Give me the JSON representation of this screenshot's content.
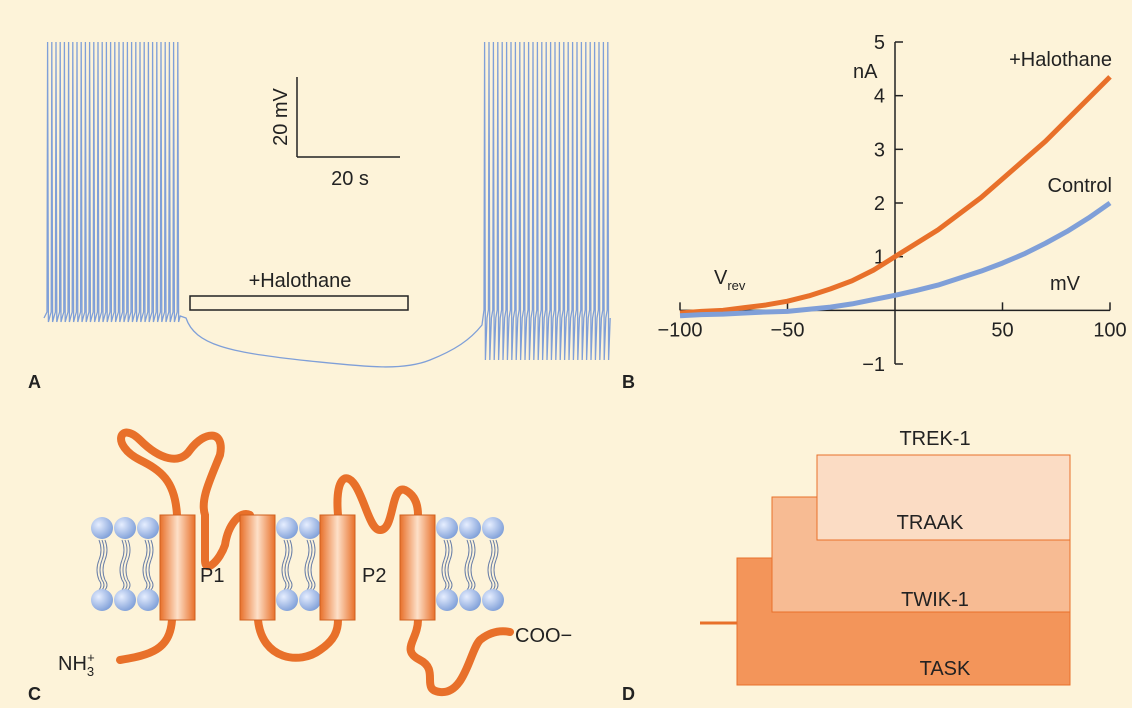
{
  "panels": {
    "a": {
      "label": "A",
      "scale_y": "20 mV",
      "scale_x": "20 s",
      "drug": "+Halothane"
    },
    "b": {
      "label": "B",
      "reversal": {
        "base": "V",
        "sub": "rev"
      }
    },
    "c": {
      "label": "C",
      "pore_1": "P1",
      "pore_2": "P2",
      "n_terminus": {
        "base": "NH",
        "sub": "3",
        "sup": "+"
      },
      "c_terminus": "COO−"
    },
    "d": {
      "label": "D",
      "leaves": [
        "TREK-1",
        "TRAAK",
        "TWIK-1",
        "TASK"
      ]
    }
  },
  "chart_data": {
    "type": "line",
    "y_label": "nA",
    "x_label": "mV",
    "x": [
      -100,
      -90,
      -80,
      -70,
      -60,
      -50,
      -40,
      -30,
      -20,
      -10,
      0,
      10,
      20,
      30,
      40,
      50,
      60,
      70,
      80,
      90,
      100
    ],
    "series": [
      {
        "name": "+Halothane",
        "color": "#e8702a",
        "values": [
          -0.05,
          -0.02,
          0.0,
          0.05,
          0.1,
          0.17,
          0.27,
          0.4,
          0.55,
          0.75,
          1.0,
          1.25,
          1.5,
          1.8,
          2.1,
          2.45,
          2.8,
          3.15,
          3.55,
          3.95,
          4.35
        ]
      },
      {
        "name": "Control",
        "color": "#7f9fd8",
        "values": [
          -0.1,
          -0.08,
          -0.07,
          -0.05,
          -0.03,
          -0.02,
          0.02,
          0.06,
          0.12,
          0.2,
          0.28,
          0.37,
          0.47,
          0.6,
          0.73,
          0.88,
          1.05,
          1.25,
          1.47,
          1.72,
          2.0
        ]
      }
    ],
    "xlim": [
      -100,
      100
    ],
    "ylim": [
      -1,
      5
    ],
    "xticks": [
      {
        "value": -100,
        "label": "−100"
      },
      {
        "value": -50,
        "label": "−50"
      },
      50,
      100
    ],
    "yticks": [
      {
        "value": -1,
        "label": "−1"
      },
      1,
      2,
      3,
      4,
      5
    ]
  }
}
